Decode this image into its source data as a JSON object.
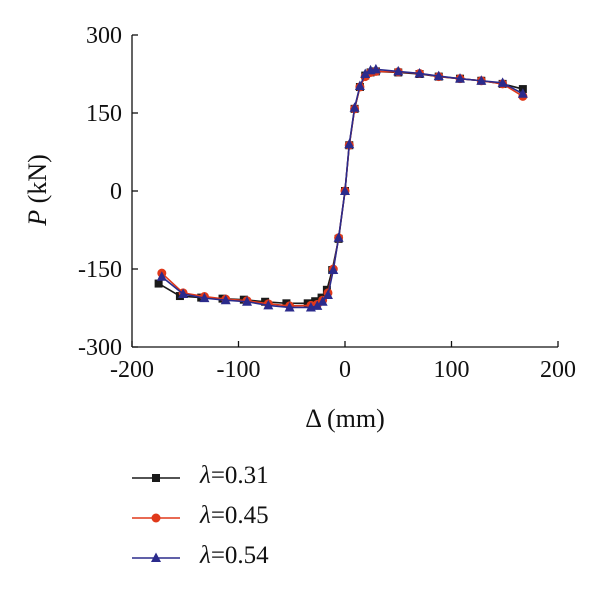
{
  "chart_data": {
    "type": "line",
    "xlabel_symbol": "Δ",
    "xlabel_unit": "(mm)",
    "ylabel_symbol": "P",
    "ylabel_unit": "(kN)",
    "xlim": [
      -200,
      200
    ],
    "ylim": [
      -300,
      300
    ],
    "xticks": [
      -200,
      -100,
      0,
      100,
      200
    ],
    "yticks": [
      -300,
      -150,
      0,
      150,
      300
    ],
    "grid": false,
    "legend_position": "bottom",
    "series": [
      {
        "name": "λ=0.31",
        "legend_symbol": "λ",
        "legend_value": "=0.31",
        "color": "#1a1a1a",
        "marker": "square",
        "x": [
          -175,
          -155,
          -135,
          -115,
          -95,
          -75,
          -55,
          -35,
          -28,
          -22,
          -17,
          -12,
          -6,
          0,
          4,
          9,
          14,
          19,
          24,
          29,
          50,
          70,
          88,
          108,
          128,
          148,
          167
        ],
        "y": [
          -178,
          -202,
          -205,
          -207,
          -209,
          -213,
          -216,
          -216,
          -212,
          -205,
          -190,
          -152,
          -92,
          0,
          88,
          158,
          200,
          222,
          228,
          230,
          228,
          225,
          220,
          216,
          212,
          206,
          196
        ]
      },
      {
        "name": "λ=0.45",
        "legend_symbol": "λ",
        "legend_value": "=0.45",
        "color": "#e0391a",
        "marker": "circle",
        "x": [
          -172,
          -152,
          -132,
          -112,
          -92,
          -72,
          -52,
          -32,
          -26,
          -21,
          -16,
          -11,
          -6,
          0,
          4,
          9,
          14,
          19,
          24,
          29,
          50,
          70,
          88,
          108,
          128,
          148,
          167
        ],
        "y": [
          -158,
          -196,
          -203,
          -208,
          -211,
          -217,
          -221,
          -220,
          -218,
          -210,
          -196,
          -150,
          -90,
          0,
          88,
          158,
          200,
          220,
          228,
          230,
          229,
          226,
          220,
          216,
          212,
          206,
          182
        ]
      },
      {
        "name": "λ=0.54",
        "legend_symbol": "λ",
        "legend_value": "=0.54",
        "color": "#2b2b8c",
        "marker": "triangle",
        "x": [
          -172,
          -152,
          -132,
          -112,
          -92,
          -72,
          -52,
          -32,
          -26,
          -21,
          -16,
          -11,
          -6,
          0,
          4,
          9,
          14,
          19,
          24,
          29,
          50,
          70,
          88,
          108,
          128,
          148,
          167
        ],
        "y": [
          -165,
          -198,
          -206,
          -210,
          -213,
          -220,
          -224,
          -224,
          -221,
          -213,
          -200,
          -152,
          -90,
          0,
          90,
          160,
          202,
          225,
          232,
          234,
          230,
          226,
          221,
          216,
          212,
          208,
          187
        ]
      }
    ]
  }
}
